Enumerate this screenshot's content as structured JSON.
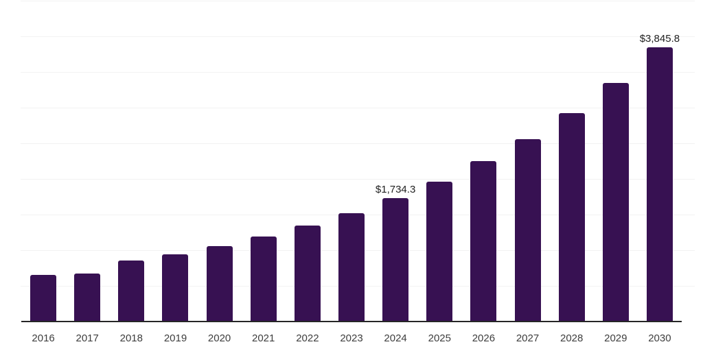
{
  "chart_data": {
    "type": "bar",
    "title": "",
    "xlabel": "",
    "ylabel": "",
    "categories": [
      "2016",
      "2017",
      "2018",
      "2019",
      "2020",
      "2021",
      "2022",
      "2023",
      "2024",
      "2025",
      "2026",
      "2027",
      "2028",
      "2029",
      "2030"
    ],
    "values": [
      655,
      675,
      860,
      945,
      1055,
      1195,
      1345,
      1515,
      1734.3,
      1965,
      2255,
      2555,
      2920,
      3350,
      3845.8
    ],
    "data_labels": {
      "2024": "$1,734.3",
      "2030": "$3,845.8"
    },
    "ylim": [
      0,
      4510
    ],
    "gridlines": [
      500,
      1000,
      1500,
      2000,
      2500,
      3000,
      3500,
      4000,
      4500
    ],
    "grid": "horizontal",
    "legend": "none",
    "y_axis_labels_visible": false
  },
  "style": {
    "bar_color": "#371152",
    "axis_color": "#262626",
    "gridline_color": "#f2f2f2",
    "data_label_color": "#1f1f1f",
    "tick_label_color": "#3d3d3d",
    "background": "#ffffff"
  }
}
